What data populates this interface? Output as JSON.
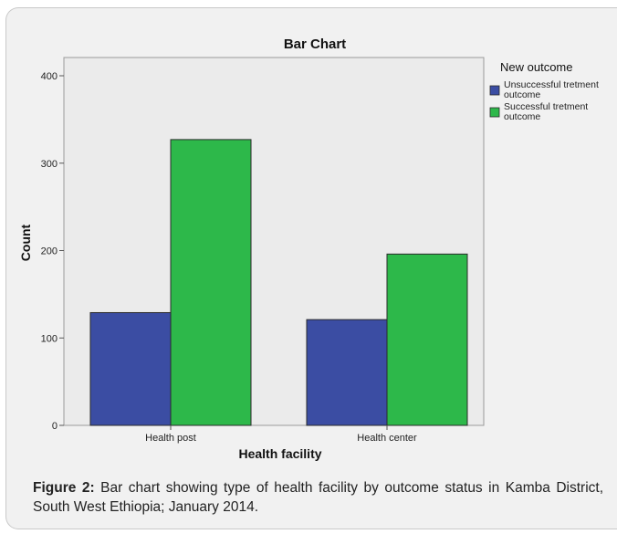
{
  "chart_data": {
    "type": "bar",
    "title": "Bar Chart",
    "xlabel": "Health facility",
    "ylabel": "Count",
    "categories": [
      "Health post",
      "Health center"
    ],
    "series": [
      {
        "name": "Unsuccessful tretment outcome",
        "values": [
          129,
          121
        ],
        "color": "#3b4da3"
      },
      {
        "name": "Successful tretment outcome",
        "values": [
          327,
          196
        ],
        "color": "#2db84a"
      }
    ],
    "ylim": [
      0,
      420
    ],
    "yticks": [
      0,
      100,
      200,
      300,
      400
    ],
    "legend_title": "New outcome",
    "legend_position": "right",
    "plot_background": "#ebebeb",
    "grid": false
  },
  "caption": {
    "label": "Figure 2:",
    "text": " Bar chart showing type of health facility by outcome status in Kamba District, South West Ethiopia; January 2014."
  }
}
